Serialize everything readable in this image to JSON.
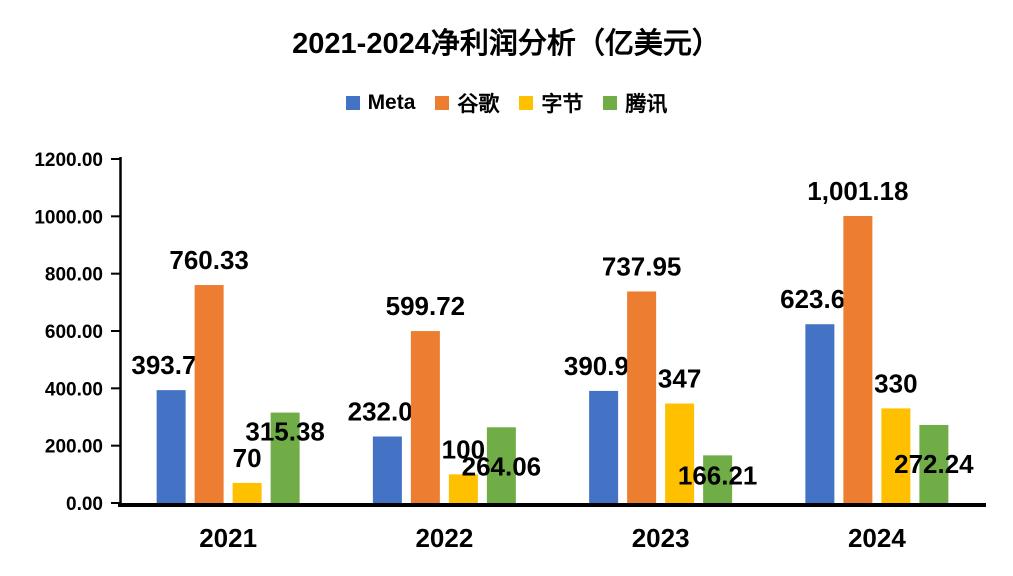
{
  "page": {
    "background": "#ffffff"
  },
  "chart_data": {
    "type": "bar",
    "title": "2021-2024净利润分析（亿美元）",
    "categories": [
      "2021",
      "2022",
      "2023",
      "2024"
    ],
    "series": [
      {
        "key": "meta",
        "name": "Meta",
        "color": "#4472C4",
        "values": [
          393.7,
          232.0,
          390.98,
          623.6
        ],
        "labels": [
          "393.70",
          "232.00",
          "390.98",
          "623.60"
        ],
        "label_placement": "above"
      },
      {
        "key": "google",
        "name": "谷歌",
        "color": "#ED7D31",
        "values": [
          760.33,
          599.72,
          737.95,
          1001.18
        ],
        "labels": [
          "760.33",
          "599.72",
          "737.95",
          "1,001.18"
        ],
        "label_placement": "above"
      },
      {
        "key": "bytedance",
        "name": "字节",
        "color": "#FFC000",
        "values": [
          70,
          100,
          347,
          330
        ],
        "labels": [
          "70",
          "100",
          "347",
          "330"
        ],
        "label_placement": "above"
      },
      {
        "key": "tencent",
        "name": "腾讯",
        "color": "#70AD47",
        "values": [
          315.38,
          264.06,
          166.21,
          272.24
        ],
        "labels": [
          "315.38",
          "264.06",
          "166.21",
          "272.24"
        ],
        "label_placement": "inside",
        "label_dy": [
          28,
          48,
          29,
          48
        ]
      }
    ],
    "y_axis": {
      "min": 0,
      "max": 1200,
      "step": 200,
      "tick_labels": [
        "0.00",
        "200.00",
        "400.00",
        "600.00",
        "800.00",
        "1000.00",
        "1200.00"
      ]
    },
    "grid": false,
    "legend_position": "top",
    "axis_color": "#000000",
    "text_color": "#000000"
  }
}
